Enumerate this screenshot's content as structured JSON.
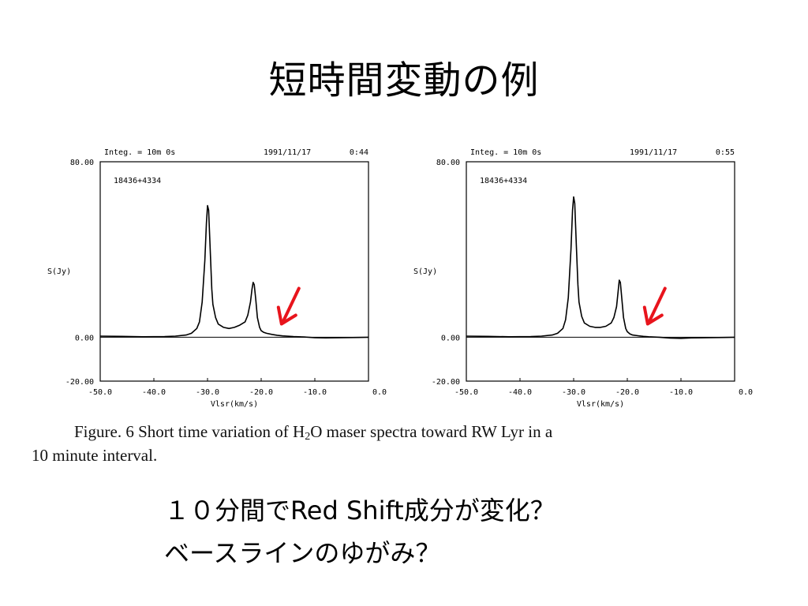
{
  "slide": {
    "title": "短時間変動の例",
    "caption_part1": "Figure. 6 Short time variation of H",
    "caption_sub": "2",
    "caption_part2": "O maser spectra toward RW Lyr in a",
    "caption_line2": "10 minute interval.",
    "comment_line1": "１０分間でRed Shift成分が変化？",
    "comment_line2": "ベースラインのゆがみ？"
  },
  "colors": {
    "arrow": "#e8141c",
    "ink": "#000000"
  },
  "chart_data": [
    {
      "type": "line",
      "header_integ": "Integ. = 10m 0s",
      "header_date": "1991/11/17",
      "header_time": "0:44",
      "source": "18436+4334",
      "ylabel": "S(Jy)",
      "xlabel": "Vlsr(km/s)",
      "y_ticks": [
        "80.00",
        "0.00",
        "-20.00"
      ],
      "x_ticks": [
        "-50.0",
        "-40.0",
        "-30.0",
        "-20.0",
        "-10.0",
        "0.0"
      ],
      "xlim": [
        -50,
        0
      ],
      "ylim": [
        -20,
        80
      ],
      "annotation": "arrow pointing at red-shifted wing near -17 km/s",
      "x": [
        -50,
        -46,
        -42,
        -38,
        -36,
        -34,
        -33,
        -32,
        -31.5,
        -31,
        -30.5,
        -30.2,
        -30,
        -29.8,
        -29.5,
        -29.2,
        -29,
        -28.5,
        -28,
        -27,
        -26,
        -25,
        -24,
        -23,
        -22.5,
        -22,
        -21.7,
        -21.5,
        -21.3,
        -21,
        -20.7,
        -20.3,
        -20,
        -19.5,
        -19,
        -18,
        -17,
        -16,
        -14,
        -12,
        -10,
        -8,
        -5,
        -2,
        0
      ],
      "y": [
        0.5,
        0.4,
        0.2,
        0.3,
        0.5,
        1.0,
        1.8,
        4.0,
        7.0,
        16.0,
        35.0,
        52.0,
        60.0,
        58.0,
        40.0,
        22.0,
        15.0,
        9.0,
        6.0,
        4.5,
        4.0,
        4.5,
        5.5,
        7.0,
        10.0,
        16.0,
        22.0,
        25.0,
        24.0,
        17.0,
        9.0,
        4.5,
        3.0,
        2.2,
        1.8,
        1.3,
        0.9,
        0.6,
        0.3,
        0.1,
        -0.2,
        -0.3,
        -0.2,
        -0.1,
        0.0
      ]
    },
    {
      "type": "line",
      "header_integ": "Integ. = 10m 0s",
      "header_date": "1991/11/17",
      "header_time": "0:55",
      "source": "18436+4334",
      "ylabel": "S(Jy)",
      "xlabel": "Vlsr(km/s)",
      "y_ticks": [
        "80.00",
        "0.00",
        "-20.00"
      ],
      "x_ticks": [
        "-50.0",
        "-40.0",
        "-30.0",
        "-20.0",
        "-10.0",
        "0.0"
      ],
      "xlim": [
        -50,
        0
      ],
      "ylim": [
        -20,
        80
      ],
      "annotation": "arrow pointing at red-shifted wing near -17 km/s",
      "x": [
        -50,
        -46,
        -42,
        -38,
        -36,
        -34,
        -33,
        -32,
        -31.5,
        -31,
        -30.5,
        -30.2,
        -30,
        -29.8,
        -29.5,
        -29.2,
        -29,
        -28.5,
        -28,
        -27,
        -26,
        -25,
        -24,
        -23,
        -22.5,
        -22,
        -21.7,
        -21.5,
        -21.3,
        -21,
        -20.7,
        -20.3,
        -20,
        -19.5,
        -19,
        -18,
        -17,
        -16,
        -14,
        -12,
        -10,
        -8,
        -5,
        -2,
        0
      ],
      "y": [
        0.5,
        0.4,
        0.2,
        0.3,
        0.5,
        1.0,
        1.8,
        4.0,
        8.0,
        18.0,
        40.0,
        58.0,
        64.0,
        61.0,
        42.0,
        24.0,
        16.0,
        9.5,
        6.5,
        5.0,
        4.5,
        4.5,
        5.0,
        6.5,
        9.0,
        14.0,
        21.0,
        26.0,
        25.0,
        17.0,
        9.0,
        4.0,
        2.5,
        1.5,
        1.0,
        0.7,
        0.4,
        0.2,
        0.0,
        -0.4,
        -0.5,
        -0.3,
        -0.2,
        -0.1,
        0.0
      ]
    }
  ]
}
